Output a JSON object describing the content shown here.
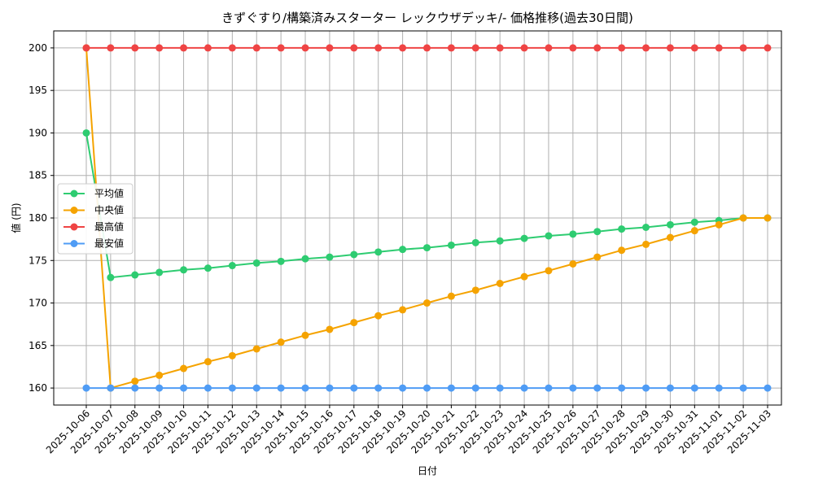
{
  "chart_data": {
    "type": "line",
    "title": "きずぐすり/構築済みスターター レックウザデッキ/- 価格推移(過去30日間)",
    "xlabel": "日付",
    "ylabel": "値 (円)",
    "ylim": [
      158,
      202
    ],
    "yticks": [
      160,
      165,
      170,
      175,
      180,
      185,
      190,
      195,
      200
    ],
    "grid": true,
    "legend_position": "center-left",
    "categories": [
      "2025-10-06",
      "2025-10-07",
      "2025-10-08",
      "2025-10-09",
      "2025-10-10",
      "2025-10-11",
      "2025-10-12",
      "2025-10-13",
      "2025-10-14",
      "2025-10-15",
      "2025-10-16",
      "2025-10-17",
      "2025-10-18",
      "2025-10-19",
      "2025-10-20",
      "2025-10-21",
      "2025-10-22",
      "2025-10-23",
      "2025-10-24",
      "2025-10-25",
      "2025-10-26",
      "2025-10-27",
      "2025-10-28",
      "2025-10-29",
      "2025-10-30",
      "2025-10-31",
      "2025-11-01",
      "2025-11-02",
      "2025-11-03"
    ],
    "series": [
      {
        "name": "平均値",
        "color": "#2ecc71",
        "values": [
          190,
          173,
          173.3,
          173.6,
          173.9,
          174.1,
          174.4,
          174.7,
          174.9,
          175.2,
          175.4,
          175.7,
          176,
          176.3,
          176.5,
          176.8,
          177.1,
          177.3,
          177.6,
          177.9,
          178.1,
          178.4,
          178.7,
          178.9,
          179.2,
          179.5,
          179.7,
          180,
          180
        ]
      },
      {
        "name": "中央値",
        "color": "#f5a300",
        "values": [
          200,
          160,
          160.8,
          161.5,
          162.3,
          163.1,
          163.8,
          164.6,
          165.4,
          166.2,
          166.9,
          167.7,
          168.5,
          169.2,
          170,
          170.8,
          171.5,
          172.3,
          173.1,
          173.8,
          174.6,
          175.4,
          176.2,
          176.9,
          177.7,
          178.5,
          179.2,
          180,
          180
        ]
      },
      {
        "name": "最高値",
        "color": "#ef4444",
        "values": [
          200,
          200,
          200,
          200,
          200,
          200,
          200,
          200,
          200,
          200,
          200,
          200,
          200,
          200,
          200,
          200,
          200,
          200,
          200,
          200,
          200,
          200,
          200,
          200,
          200,
          200,
          200,
          200,
          200
        ]
      },
      {
        "name": "最安値",
        "color": "#4f9cf5",
        "values": [
          160,
          160,
          160,
          160,
          160,
          160,
          160,
          160,
          160,
          160,
          160,
          160,
          160,
          160,
          160,
          160,
          160,
          160,
          160,
          160,
          160,
          160,
          160,
          160,
          160,
          160,
          160,
          160,
          160
        ]
      }
    ]
  }
}
